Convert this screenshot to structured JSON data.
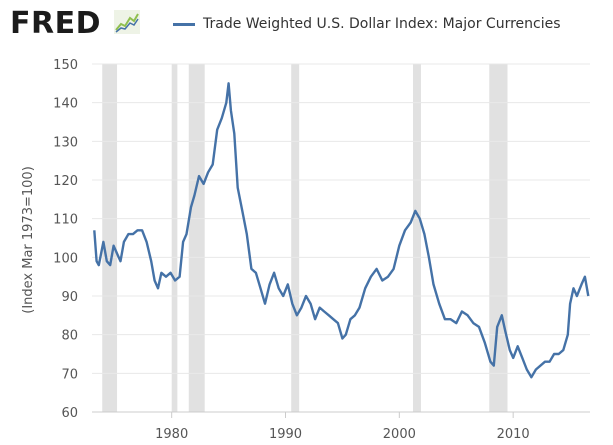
{
  "brand": {
    "logo_text": "FRED",
    "logo_icon": "fred-chart-icon",
    "logo_color": "#1b1b1b",
    "logo_accent": "#8fbf4f"
  },
  "colors": {
    "series": "#4572a7",
    "recession": "#e1e1e1",
    "grid": "#e8e8e8"
  },
  "chart_data": {
    "type": "line",
    "title": "",
    "xlabel": "",
    "ylabel": "(Index Mar 1973=100)",
    "xlim": [
      1973,
      2016.75
    ],
    "ylim": [
      60,
      150
    ],
    "x_ticks": [
      1980,
      1990,
      2000,
      2010
    ],
    "y_ticks": [
      60,
      70,
      80,
      90,
      100,
      110,
      120,
      130,
      140,
      150
    ],
    "grid": "horizontal",
    "legend": "top",
    "recessions": [
      [
        1973.9,
        1975.2
      ],
      [
        1980.0,
        1980.5
      ],
      [
        1981.5,
        1982.9
      ],
      [
        1990.5,
        1991.2
      ],
      [
        2001.2,
        2001.9
      ],
      [
        2007.9,
        2009.5
      ]
    ],
    "series": [
      {
        "name": "Trade Weighted U.S. Dollar Index: Major Currencies",
        "x": [
          1973.2,
          1973.4,
          1973.6,
          1973.8,
          1974.0,
          1974.3,
          1974.6,
          1974.9,
          1975.2,
          1975.5,
          1975.8,
          1976.2,
          1976.6,
          1977.0,
          1977.4,
          1977.8,
          1978.2,
          1978.5,
          1978.8,
          1979.1,
          1979.5,
          1979.9,
          1980.3,
          1980.7,
          1981.0,
          1981.3,
          1981.7,
          1982.0,
          1982.4,
          1982.8,
          1983.2,
          1983.6,
          1984.0,
          1984.4,
          1984.8,
          1985.0,
          1985.2,
          1985.5,
          1985.8,
          1986.2,
          1986.6,
          1987.0,
          1987.4,
          1987.8,
          1988.2,
          1988.6,
          1989.0,
          1989.4,
          1989.8,
          1990.2,
          1990.6,
          1991.0,
          1991.4,
          1991.8,
          1992.2,
          1992.6,
          1993.0,
          1993.4,
          1993.8,
          1994.2,
          1994.6,
          1995.0,
          1995.3,
          1995.7,
          1996.1,
          1996.5,
          1997.0,
          1997.5,
          1998.0,
          1998.5,
          1999.0,
          1999.5,
          2000.0,
          2000.5,
          2001.0,
          2001.4,
          2001.8,
          2002.2,
          2002.6,
          2003.0,
          2003.5,
          2004.0,
          2004.5,
          2005.0,
          2005.5,
          2006.0,
          2006.5,
          2007.0,
          2007.5,
          2008.0,
          2008.3,
          2008.6,
          2009.0,
          2009.3,
          2009.7,
          2010.0,
          2010.4,
          2010.8,
          2011.2,
          2011.6,
          2012.0,
          2012.4,
          2012.8,
          2013.2,
          2013.6,
          2014.0,
          2014.4,
          2014.8,
          2015.0,
          2015.3,
          2015.6,
          2016.0,
          2016.3,
          2016.6
        ],
        "y": [
          107,
          99,
          98,
          101,
          104,
          99,
          98,
          103,
          101,
          99,
          104,
          106,
          106,
          107,
          107,
          104,
          99,
          94,
          92,
          96,
          95,
          96,
          94,
          95,
          104,
          106,
          113,
          116,
          121,
          119,
          122,
          124,
          133,
          136,
          140,
          145,
          138,
          132,
          118,
          112,
          106,
          97,
          96,
          92,
          88,
          93,
          96,
          92,
          90,
          93,
          88,
          85,
          87,
          90,
          88,
          84,
          87,
          86,
          85,
          84,
          83,
          79,
          80,
          84,
          85,
          87,
          92,
          95,
          97,
          94,
          95,
          97,
          103,
          107,
          109,
          112,
          110,
          106,
          100,
          93,
          88,
          84,
          84,
          83,
          86,
          85,
          83,
          82,
          78,
          73,
          72,
          82,
          85,
          81,
          76,
          74,
          77,
          74,
          71,
          69,
          71,
          72,
          73,
          73,
          75,
          75,
          76,
          80,
          88,
          92,
          90,
          93,
          95,
          90
        ]
      }
    ]
  }
}
